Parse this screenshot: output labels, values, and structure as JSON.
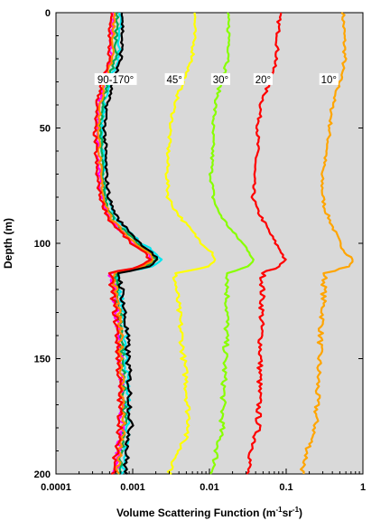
{
  "chart_data": {
    "type": "line",
    "title": "",
    "xlabel": "Volume Scattering Function (m-1sr-1)",
    "xlabel_parts": {
      "base": "Volume Scattering Function (m",
      "sup1": "-1",
      "mid": "sr",
      "sup2": "-1",
      "end": ")"
    },
    "ylabel": "Depth (m)",
    "x_scale": "log",
    "xlim": [
      0.0001,
      1
    ],
    "ylim": [
      0,
      200
    ],
    "y_inverted": true,
    "x_ticks": [
      {
        "value": 0.0001,
        "label": "0.0001"
      },
      {
        "value": 0.001,
        "label": "0.001"
      },
      {
        "value": 0.01,
        "label": "0.01"
      },
      {
        "value": 0.1,
        "label": "0.1"
      },
      {
        "value": 1,
        "label": "1"
      }
    ],
    "y_ticks": [
      {
        "value": 0,
        "label": "0"
      },
      {
        "value": 50,
        "label": "50"
      },
      {
        "value": 100,
        "label": "100"
      },
      {
        "value": 150,
        "label": "150"
      },
      {
        "value": 200,
        "label": "200"
      }
    ],
    "grid": false,
    "plot_background": "#d9d9d9",
    "depth": [
      0,
      10,
      20,
      30,
      40,
      50,
      60,
      70,
      80,
      85,
      90,
      95,
      100,
      104,
      107,
      110,
      113,
      120,
      130,
      140,
      150,
      160,
      170,
      180,
      190,
      200
    ],
    "series": [
      {
        "color": "#ffa500",
        "values": [
          0.55,
          0.57,
          0.58,
          0.5,
          0.4,
          0.37,
          0.34,
          0.29,
          0.3,
          0.32,
          0.37,
          0.43,
          0.5,
          0.6,
          0.75,
          0.65,
          0.32,
          0.31,
          0.3,
          0.28,
          0.27,
          0.26,
          0.25,
          0.24,
          0.19,
          0.16
        ]
      },
      {
        "color": "#ff0000",
        "values": [
          0.082,
          0.078,
          0.075,
          0.06,
          0.047,
          0.043,
          0.042,
          0.038,
          0.037,
          0.041,
          0.05,
          0.06,
          0.073,
          0.088,
          0.095,
          0.08,
          0.05,
          0.049,
          0.048,
          0.047,
          0.046,
          0.045,
          0.044,
          0.043,
          0.036,
          0.031
        ]
      },
      {
        "color": "#88ff00",
        "values": [
          0.017,
          0.018,
          0.018,
          0.014,
          0.012,
          0.011,
          0.011,
          0.0105,
          0.0112,
          0.0125,
          0.0155,
          0.02,
          0.027,
          0.034,
          0.037,
          0.032,
          0.018,
          0.017,
          0.017,
          0.0165,
          0.016,
          0.0155,
          0.015,
          0.0145,
          0.0125,
          0.011
        ]
      },
      {
        "color": "#ffff00",
        "values": [
          0.0065,
          0.0063,
          0.006,
          0.0045,
          0.0035,
          0.0031,
          0.0029,
          0.0028,
          0.0029,
          0.0035,
          0.0045,
          0.006,
          0.008,
          0.011,
          0.012,
          0.01,
          0.0035,
          0.0037,
          0.004,
          0.0043,
          0.0046,
          0.005,
          0.0052,
          0.0055,
          0.004,
          0.003
        ]
      },
      {
        "color": "#00e5ee",
        "values": [
          0.0007,
          0.00068,
          0.00065,
          0.0005,
          0.00042,
          0.0004,
          0.00041,
          0.00042,
          0.00046,
          0.00052,
          0.00062,
          0.0009,
          0.0013,
          0.002,
          0.0024,
          0.0018,
          0.00062,
          0.00068,
          0.00075,
          0.0008,
          0.00082,
          0.00085,
          0.00086,
          0.00088,
          0.00078,
          0.00074
        ]
      },
      {
        "color": "#00aa55",
        "values": [
          0.00063,
          0.00061,
          0.0006,
          0.00047,
          0.0004,
          0.00038,
          0.00039,
          0.0004,
          0.00044,
          0.00049,
          0.00057,
          0.0008,
          0.00115,
          0.0017,
          0.002,
          0.0015,
          0.00058,
          0.00063,
          0.00068,
          0.00072,
          0.00074,
          0.00076,
          0.00077,
          0.00078,
          0.0007,
          0.00066
        ]
      },
      {
        "color": "#ff00ff",
        "values": [
          0.00055,
          0.00053,
          0.00052,
          0.00042,
          0.00036,
          0.00034,
          0.00035,
          0.00036,
          0.0004,
          0.00045,
          0.00052,
          0.00072,
          0.001,
          0.0015,
          0.0018,
          0.0013,
          0.00052,
          0.00057,
          0.00062,
          0.00066,
          0.00068,
          0.0007,
          0.00071,
          0.00072,
          0.00064,
          0.0006
        ]
      },
      {
        "color": "#ff8c00",
        "values": [
          0.00058,
          0.00056,
          0.00055,
          0.00044,
          0.00038,
          0.00036,
          0.00037,
          0.00038,
          0.00042,
          0.00047,
          0.00054,
          0.00076,
          0.00108,
          0.0016,
          0.0019,
          0.0014,
          0.00055,
          0.0006,
          0.00065,
          0.00069,
          0.00071,
          0.00073,
          0.00074,
          0.00075,
          0.00067,
          0.00063
        ]
      },
      {
        "color": "#ff0000",
        "values": [
          0.00052,
          0.0005,
          0.00049,
          0.0004,
          0.00034,
          0.00032,
          0.00033,
          0.00034,
          0.00038,
          0.00043,
          0.0005,
          0.00069,
          0.00095,
          0.0014,
          0.0017,
          0.00125,
          0.0005,
          0.00054,
          0.00059,
          0.00063,
          0.00065,
          0.00067,
          0.00068,
          0.00069,
          0.00061,
          0.00057
        ]
      },
      {
        "color": "#000000",
        "values": [
          0.00075,
          0.00073,
          0.0007,
          0.00055,
          0.00046,
          0.00043,
          0.00044,
          0.00045,
          0.00049,
          0.00055,
          0.00066,
          0.00092,
          0.00125,
          0.0018,
          0.0021,
          0.0016,
          0.00066,
          0.00072,
          0.00078,
          0.00084,
          0.00087,
          0.0009,
          0.00092,
          0.00094,
          0.00084,
          0.0008
        ]
      }
    ],
    "annotations": [
      {
        "text": "90-170°",
        "x": 0.0006,
        "y": 29
      },
      {
        "text": "45°",
        "x": 0.0035,
        "y": 29
      },
      {
        "text": "30°",
        "x": 0.014,
        "y": 29
      },
      {
        "text": "20°",
        "x": 0.05,
        "y": 29
      },
      {
        "text": "10°",
        "x": 0.36,
        "y": 29
      }
    ]
  }
}
